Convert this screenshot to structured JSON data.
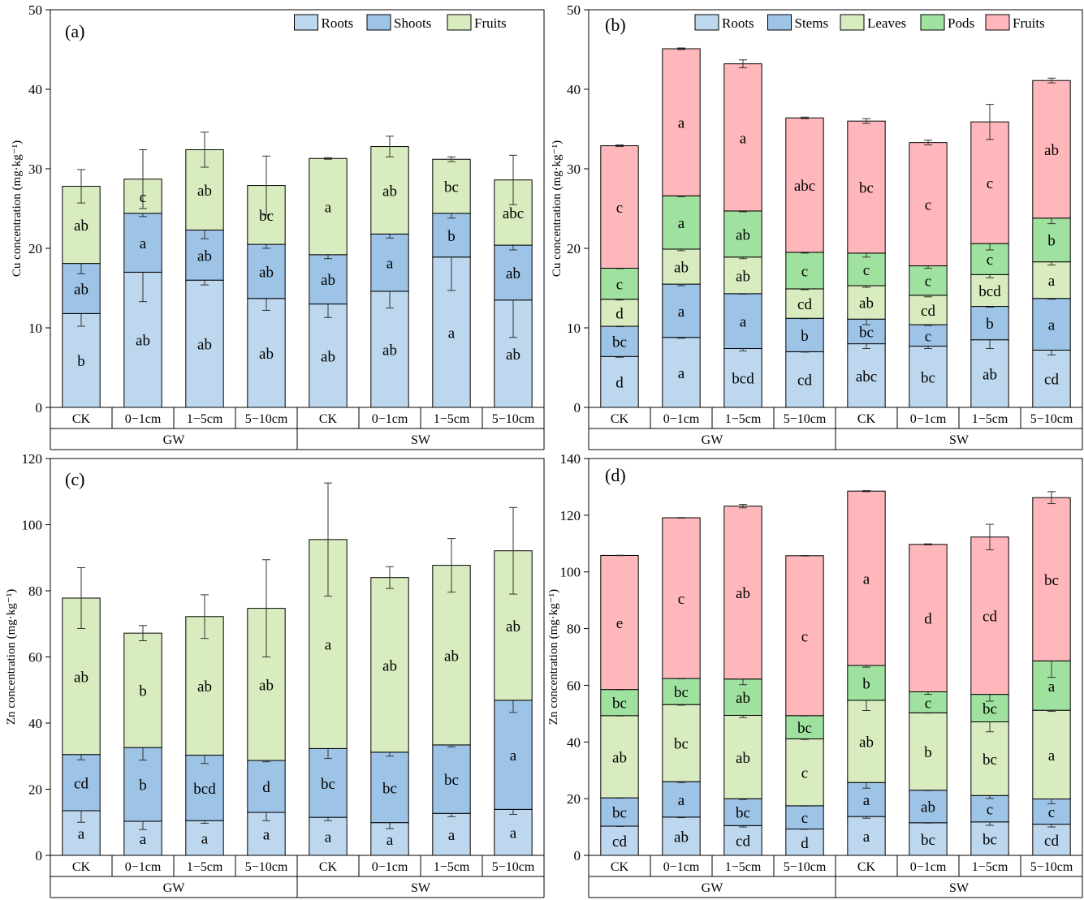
{
  "colors": {
    "roots": "#bdd7ee",
    "shoots_stems": "#9dc3e6",
    "fruits_green": "#d9ecbf",
    "leaves": "#d9ecbf",
    "pods": "#9fe29f",
    "fruits_pink": "#ffb7bb",
    "axis": "#000000"
  },
  "chart_data": [
    {
      "id": "a",
      "panel_label": "(a)",
      "type": "bar",
      "stacked": true,
      "ylabel": "Cu concentration (mg·kg⁻¹)",
      "ylim": [
        0,
        50
      ],
      "yticks": [
        0,
        10,
        20,
        30,
        40,
        50
      ],
      "categories": [
        "CK",
        "0−1cm",
        "1−5cm",
        "5−10cm",
        "CK",
        "0−1cm",
        "1−5cm",
        "5−10cm"
      ],
      "groups": [
        {
          "label": "GW",
          "span": [
            0,
            3
          ]
        },
        {
          "label": "SW",
          "span": [
            4,
            7
          ]
        }
      ],
      "legend": "top-right",
      "series": [
        {
          "name": "Roots",
          "color": "#bdd7ee",
          "values": [
            11.8,
            17.0,
            16.0,
            13.7,
            13.0,
            14.6,
            18.9,
            13.5
          ],
          "errors": [
            1.6,
            3.7,
            0.6,
            1.5,
            1.7,
            2.1,
            4.2,
            4.7
          ],
          "letters": [
            "b",
            "ab",
            "ab",
            "ab",
            "ab",
            "ab",
            "a",
            "ab"
          ]
        },
        {
          "name": "Shoots",
          "color": "#9dc3e6",
          "values": [
            6.3,
            7.4,
            6.3,
            6.8,
            6.2,
            7.2,
            5.5,
            6.9
          ],
          "errors": [
            1.3,
            0.4,
            1.1,
            0.5,
            0.5,
            0.5,
            0.6,
            0.6
          ],
          "letters": [
            "ab",
            "a",
            "ab",
            "ab",
            "ab",
            "a",
            "b",
            "ab"
          ]
        },
        {
          "name": "Fruits",
          "color": "#d9ecbf",
          "values": [
            9.7,
            4.3,
            10.1,
            7.4,
            12.1,
            11.0,
            6.8,
            8.2
          ],
          "errors": [
            2.1,
            3.7,
            2.2,
            3.7,
            0.1,
            1.3,
            0.3,
            3.1
          ],
          "letters": [
            "ab",
            "c",
            "ab",
            "bc",
            "a",
            "ab",
            "bc",
            "abc"
          ]
        }
      ]
    },
    {
      "id": "b",
      "panel_label": "(b)",
      "type": "bar",
      "stacked": true,
      "ylabel": "Cu concentration (mg·kg⁻¹)",
      "ylim": [
        0,
        50
      ],
      "yticks": [
        0,
        10,
        20,
        30,
        40,
        50
      ],
      "categories": [
        "CK",
        "0−1cm",
        "1−5cm",
        "5−10cm",
        "CK",
        "0−1cm",
        "1−5cm",
        "5−10cm"
      ],
      "groups": [
        {
          "label": "GW",
          "span": [
            0,
            3
          ]
        },
        {
          "label": "SW",
          "span": [
            4,
            7
          ]
        }
      ],
      "legend": "top-right",
      "series": [
        {
          "name": "Roots",
          "color": "#bdd7ee",
          "values": [
            6.4,
            8.8,
            7.4,
            7.0,
            8.0,
            7.7,
            8.5,
            7.2
          ],
          "errors": [
            0.1,
            0.1,
            0.3,
            0.05,
            0.6,
            0.3,
            1.1,
            0.6
          ],
          "letters": [
            "d",
            "a",
            "bcd",
            "cd",
            "abc",
            "bc",
            "ab",
            "cd"
          ]
        },
        {
          "name": "Stems",
          "color": "#9dc3e6",
          "values": [
            3.8,
            6.7,
            6.9,
            4.2,
            3.1,
            2.7,
            4.2,
            6.5
          ],
          "errors": [
            0.05,
            0.2,
            0.05,
            0.05,
            0.7,
            0.1,
            0.1,
            0.1
          ],
          "letters": [
            "bc",
            "a",
            "a",
            "b",
            "bc",
            "c",
            "b",
            "a"
          ]
        },
        {
          "name": "Leaves",
          "color": "#d9ecbf",
          "values": [
            3.4,
            4.4,
            4.6,
            3.7,
            4.2,
            3.7,
            4.0,
            4.6
          ],
          "errors": [
            0.1,
            0.2,
            0.2,
            0.1,
            0.2,
            0.2,
            0.4,
            0.4
          ],
          "letters": [
            "d",
            "ab",
            "ab",
            "cd",
            "ab",
            "cd",
            "bcd",
            "a"
          ]
        },
        {
          "name": "Pods",
          "color": "#9fe29f",
          "values": [
            3.9,
            6.7,
            5.8,
            4.6,
            4.1,
            3.7,
            3.9,
            5.5
          ],
          "errors": [
            0.05,
            0.1,
            0.1,
            0.1,
            0.5,
            0.3,
            0.8,
            0.7
          ],
          "letters": [
            "c",
            "a",
            "ab",
            "c",
            "c",
            "c",
            "c",
            "b"
          ]
        },
        {
          "name": "Fruits",
          "color": "#ffb7bb",
          "values": [
            15.4,
            18.5,
            18.5,
            16.9,
            16.6,
            15.5,
            15.3,
            17.3
          ],
          "errors": [
            0.1,
            0.1,
            0.5,
            0.1,
            0.3,
            0.3,
            2.2,
            0.3
          ],
          "letters": [
            "c",
            "a",
            "a",
            "abc",
            "bc",
            "c",
            "c",
            "ab"
          ]
        }
      ]
    },
    {
      "id": "c",
      "panel_label": "(c)",
      "type": "bar",
      "stacked": true,
      "ylabel": "Zn concentration (mg·kg⁻¹)",
      "ylim": [
        0,
        120
      ],
      "yticks": [
        0,
        20,
        40,
        60,
        80,
        100,
        120
      ],
      "categories": [
        "CK",
        "0−1cm",
        "1−5cm",
        "5−10cm",
        "CK",
        "0−1cm",
        "1−5cm",
        "5−10cm"
      ],
      "groups": [
        {
          "label": "GW",
          "span": [
            0,
            3
          ]
        },
        {
          "label": "SW",
          "span": [
            4,
            7
          ]
        }
      ],
      "legend": "none",
      "series": [
        {
          "name": "Roots",
          "color": "#bdd7ee",
          "values": [
            13.5,
            10.3,
            10.5,
            13.0,
            11.5,
            9.9,
            12.7,
            13.9
          ],
          "errors": [
            3.5,
            2.5,
            0.8,
            2.5,
            1.0,
            1.8,
            1.0,
            1.5
          ],
          "letters": [
            "a",
            "a",
            "a",
            "a",
            "a",
            "a",
            "a",
            "a"
          ]
        },
        {
          "name": "Shoots",
          "color": "#9dc3e6",
          "values": [
            17.0,
            22.3,
            19.8,
            15.7,
            20.8,
            21.3,
            20.7,
            33.0
          ],
          "errors": [
            1.6,
            3.8,
            2.5,
            0.4,
            3.0,
            1.2,
            0.6,
            3.7
          ],
          "letters": [
            "cd",
            "b",
            "bcd",
            "d",
            "bc",
            "bc",
            "bc",
            "a"
          ]
        },
        {
          "name": "Fruits",
          "color": "#d9ecbf",
          "values": [
            47.3,
            34.6,
            41.9,
            46.0,
            63.2,
            52.8,
            54.3,
            45.2
          ],
          "errors": [
            9.2,
            2.3,
            6.6,
            14.7,
            17.1,
            3.3,
            8.1,
            13.1
          ],
          "letters": [
            "ab",
            "b",
            "ab",
            "ab",
            "a",
            "ab",
            "ab",
            "ab"
          ]
        }
      ]
    },
    {
      "id": "d",
      "panel_label": "(d)",
      "type": "bar",
      "stacked": true,
      "ylabel": "Zn concentration (mg·kg⁻¹)",
      "ylim": [
        0,
        140
      ],
      "yticks": [
        0,
        20,
        40,
        60,
        80,
        100,
        120,
        140
      ],
      "categories": [
        "CK",
        "0−1cm",
        "1−5cm",
        "5−10cm",
        "CK",
        "0−1cm",
        "1−5cm",
        "5−10cm"
      ],
      "groups": [
        {
          "label": "GW",
          "span": [
            0,
            3
          ]
        },
        {
          "label": "SW",
          "span": [
            4,
            7
          ]
        }
      ],
      "legend": "none",
      "series": [
        {
          "name": "Roots",
          "color": "#bdd7ee",
          "values": [
            10.3,
            13.5,
            10.5,
            9.3,
            13.7,
            11.5,
            11.8,
            11.0
          ],
          "errors": [
            0.1,
            0.2,
            0.5,
            0.1,
            0.6,
            0.1,
            1.2,
            1.0
          ],
          "letters": [
            "cd",
            "ab",
            "cd",
            "d",
            "a",
            "bc",
            "bc",
            "cd"
          ]
        },
        {
          "name": "Stems",
          "color": "#9dc3e6",
          "values": [
            10.0,
            12.5,
            9.5,
            8.2,
            12.0,
            11.5,
            9.3,
            8.9
          ],
          "errors": [
            0.1,
            0.3,
            0.3,
            0.1,
            2.0,
            0.1,
            1.0,
            1.7
          ],
          "letters": [
            "bc",
            "a",
            "bc",
            "c",
            "a",
            "ab",
            "c",
            "c"
          ]
        },
        {
          "name": "Leaves",
          "color": "#d9ecbf",
          "values": [
            29.0,
            27.2,
            29.4,
            23.6,
            29.0,
            27.3,
            26.0,
            31.3
          ],
          "errors": [
            0.1,
            0.2,
            0.8,
            0.2,
            3.6,
            0.1,
            3.5,
            0.4
          ],
          "letters": [
            "ab",
            "bc",
            "ab",
            "c",
            "ab",
            "b",
            "bc",
            "a"
          ]
        },
        {
          "name": "Pods",
          "color": "#9fe29f",
          "values": [
            9.2,
            9.2,
            12.8,
            8.2,
            12.3,
            7.4,
            9.7,
            17.4
          ],
          "errors": [
            0.1,
            0.1,
            2.0,
            0.1,
            0.6,
            0.9,
            2.4,
            5.8
          ],
          "letters": [
            "bc",
            "bc",
            "ab",
            "bc",
            "b",
            "c",
            "bc",
            "a"
          ]
        },
        {
          "name": "Fruits",
          "color": "#ffb7bb",
          "values": [
            47.3,
            56.7,
            61.0,
            56.4,
            61.5,
            52.0,
            55.5,
            57.6
          ],
          "errors": [
            0.1,
            0.1,
            0.6,
            0.1,
            0.2,
            0.2,
            4.5,
            2.1
          ],
          "letters": [
            "e",
            "c",
            "ab",
            "c",
            "a",
            "d",
            "cd",
            "bc"
          ]
        }
      ]
    }
  ]
}
